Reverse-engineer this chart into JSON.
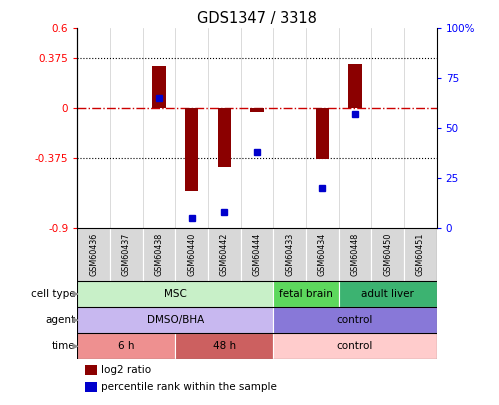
{
  "title": "GDS1347 / 3318",
  "samples": [
    "GSM60436",
    "GSM60437",
    "GSM60438",
    "GSM60440",
    "GSM60442",
    "GSM60444",
    "GSM60433",
    "GSM60434",
    "GSM60448",
    "GSM60450",
    "GSM60451"
  ],
  "log2_ratio": [
    0.0,
    0.0,
    0.32,
    -0.62,
    -0.44,
    -0.03,
    0.0,
    -0.38,
    0.33,
    0.0,
    0.0
  ],
  "percentile_rank": [
    null,
    null,
    65,
    5,
    8,
    38,
    null,
    20,
    57,
    null,
    null
  ],
  "ylim_left": [
    -0.9,
    0.6
  ],
  "ylim_right": [
    0,
    100
  ],
  "yticks_left": [
    -0.9,
    -0.375,
    0,
    0.375,
    0.6
  ],
  "ytick_labels_left": [
    "-0.9",
    "-0.375",
    "0",
    "0.375",
    "0.6"
  ],
  "yticks_right": [
    0,
    25,
    50,
    75,
    100
  ],
  "ytick_labels_right": [
    "0",
    "25",
    "50",
    "75",
    "100%"
  ],
  "hlines_dotted": [
    -0.375,
    0.375
  ],
  "bar_color": "#8B0000",
  "dot_color": "#0000CC",
  "zeroline_color": "#CC0000",
  "cell_type_groups": [
    {
      "label": "MSC",
      "start": 0,
      "end": 6,
      "color": "#C8F0C8"
    },
    {
      "label": "fetal brain",
      "start": 6,
      "end": 8,
      "color": "#5DD85D"
    },
    {
      "label": "adult liver",
      "start": 8,
      "end": 11,
      "color": "#3CB371"
    }
  ],
  "agent_groups": [
    {
      "label": "DMSO/BHA",
      "start": 0,
      "end": 6,
      "color": "#C8B8F0"
    },
    {
      "label": "control",
      "start": 6,
      "end": 11,
      "color": "#8878D8"
    }
  ],
  "time_groups": [
    {
      "label": "6 h",
      "start": 0,
      "end": 3,
      "color": "#EE9090"
    },
    {
      "label": "48 h",
      "start": 3,
      "end": 6,
      "color": "#CC6060"
    },
    {
      "label": "control",
      "start": 6,
      "end": 11,
      "color": "#FFCCCC"
    }
  ],
  "row_labels": [
    "cell type",
    "agent",
    "time"
  ],
  "legend_red": "log2 ratio",
  "legend_blue": "percentile rank within the sample",
  "bg_color": "#FFFFFF",
  "sample_bg_color": "#D8D8D8",
  "border_color": "#000000"
}
